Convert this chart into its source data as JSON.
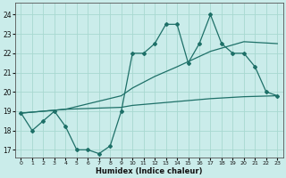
{
  "xlabel": "Humidex (Indice chaleur)",
  "xlim": [
    -0.5,
    23.5
  ],
  "ylim": [
    16.6,
    24.6
  ],
  "yticks": [
    17,
    18,
    19,
    20,
    21,
    22,
    23,
    24
  ],
  "xticks": [
    0,
    1,
    2,
    3,
    4,
    5,
    6,
    7,
    8,
    9,
    10,
    11,
    12,
    13,
    14,
    15,
    16,
    17,
    18,
    19,
    20,
    21,
    22,
    23
  ],
  "background_color": "#caecea",
  "grid_color": "#a8d8d0",
  "line_color": "#1e7068",
  "wavy_x": [
    0,
    1,
    2,
    3,
    4,
    5,
    6,
    7,
    8,
    9,
    10,
    11,
    12,
    13,
    14,
    15,
    16,
    17,
    18,
    19,
    20,
    21,
    22,
    23
  ],
  "wavy_y": [
    18.9,
    18.0,
    18.5,
    19.0,
    18.2,
    17.0,
    17.0,
    16.8,
    17.2,
    19.0,
    22.0,
    22.0,
    22.5,
    23.5,
    23.5,
    21.5,
    22.5,
    24.0,
    22.5,
    22.0,
    22.0,
    21.3,
    20.0,
    19.8
  ],
  "upper_x": [
    0,
    4,
    9,
    10,
    12,
    14,
    17,
    20,
    23
  ],
  "upper_y": [
    18.9,
    19.1,
    19.8,
    20.2,
    20.8,
    21.3,
    22.1,
    22.6,
    22.5
  ],
  "lower_x": [
    0,
    4,
    9,
    10,
    12,
    14,
    17,
    20,
    23
  ],
  "lower_y": [
    18.9,
    19.1,
    19.2,
    19.3,
    19.4,
    19.5,
    19.65,
    19.75,
    19.8
  ]
}
